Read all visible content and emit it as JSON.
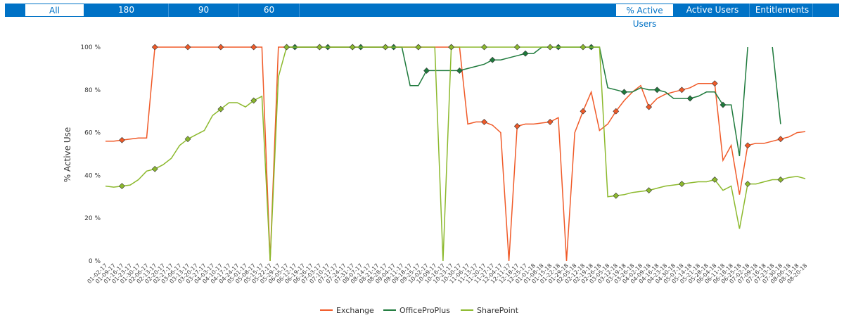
{
  "tabs_left": [
    "All",
    "180",
    "90",
    "60"
  ],
  "tabs_left_selected": 0,
  "tabs_right": [
    "% Active Users",
    "Active Users",
    "Entitlements"
  ],
  "tabs_right_selected": 0,
  "chart_data": {
    "type": "line",
    "ylabel": "% Active Use",
    "categories": [
      "01-02-17",
      "01-09-17",
      "01-16-17",
      "01-23-17",
      "01-30-17",
      "02-06-17",
      "02-13-17",
      "02-20-17",
      "02-27-17",
      "03-06-17",
      "03-13-17",
      "03-20-17",
      "03-27-17",
      "04-03-17",
      "04-10-17",
      "04-17-17",
      "04-24-17",
      "05-01-17",
      "05-08-17",
      "05-15-17",
      "05-22-17",
      "05-29-17",
      "06-05-17",
      "06-12-17",
      "06-19-17",
      "06-26-17",
      "07-03-17",
      "07-10-17",
      "07-17-17",
      "07-24-17",
      "07-31-17",
      "08-07-17",
      "08-14-17",
      "08-21-17",
      "08-28-17",
      "09-04-17",
      "09-11-17",
      "09-18-17",
      "09-25-17",
      "10-02-17",
      "10-09-17",
      "10-16-17",
      "10-23-17",
      "10-30-17",
      "11-06-17",
      "11-13-17",
      "11-20-17",
      "11-27-17",
      "12-04-17",
      "12-11-17",
      "12-18-17",
      "12-25-17",
      "01-01-18",
      "01-08-18",
      "01-15-18",
      "01-22-18",
      "01-29-18",
      "02-05-18",
      "02-12-18",
      "02-19-18",
      "02-26-18",
      "03-05-18",
      "03-12-18",
      "03-19-18",
      "03-26-18",
      "04-02-18",
      "04-09-18",
      "04-16-18",
      "04-23-18",
      "04-30-18",
      "05-07-18",
      "05-14-18",
      "05-21-18",
      "05-28-18",
      "06-04-18",
      "06-11-18",
      "06-18-18",
      "06-25-18",
      "07-02-18",
      "07-09-18",
      "07-16-18",
      "07-23-18",
      "07-30-18",
      "08-06-18",
      "08-13-18",
      "08-20-18"
    ],
    "series": [
      {
        "name": "Exchange",
        "color": "#f05a28",
        "values": [
          56,
          56,
          56.5,
          57,
          57.5,
          57.5,
          100,
          100,
          100,
          100,
          100,
          100,
          100,
          100,
          100,
          100,
          100,
          100,
          100,
          100,
          0,
          100,
          100,
          100,
          100,
          100,
          100,
          100,
          100,
          100,
          100,
          100,
          100,
          100,
          100,
          100,
          100,
          100,
          100,
          100,
          100,
          100,
          100,
          100,
          64,
          65,
          65,
          63.5,
          60,
          0,
          63,
          64,
          64,
          64.5,
          65,
          67,
          0,
          60,
          70,
          79,
          61,
          64,
          70,
          75,
          79,
          82,
          72,
          76,
          78,
          79,
          80,
          81,
          83,
          83,
          83,
          47,
          54,
          31,
          54,
          55,
          55,
          56,
          57,
          58,
          60,
          60.5
        ]
      },
      {
        "name": "OfficeProPlus",
        "color": "#1e7a3c",
        "values": [
          null,
          null,
          null,
          null,
          null,
          null,
          null,
          null,
          null,
          null,
          null,
          null,
          null,
          null,
          null,
          null,
          null,
          null,
          null,
          null,
          null,
          null,
          100,
          100,
          100,
          100,
          100,
          100,
          100,
          100,
          100,
          100,
          100,
          100,
          100,
          100,
          100,
          82,
          82,
          89,
          89,
          89,
          89,
          89,
          90,
          91,
          92,
          94,
          94,
          95,
          96,
          97,
          97,
          100,
          100,
          100,
          100,
          100,
          100,
          100,
          100,
          81,
          80,
          79,
          79,
          81,
          80,
          80,
          79,
          76,
          76,
          76,
          77,
          79,
          79,
          73,
          73,
          49,
          100,
          null,
          null,
          100,
          64,
          null,
          null,
          null
        ]
      },
      {
        "name": "SharePoint",
        "color": "#8cb92d",
        "values": [
          35,
          34.5,
          35,
          35.5,
          38,
          42,
          43,
          45,
          48,
          54,
          57,
          59,
          61,
          68,
          71,
          74,
          74,
          72,
          75,
          77,
          0,
          86,
          100,
          100,
          100,
          100,
          100,
          100,
          100,
          100,
          100,
          100,
          100,
          100,
          100,
          100,
          100,
          100,
          100,
          100,
          100,
          0,
          100,
          100,
          100,
          100,
          100,
          100,
          100,
          100,
          100,
          100,
          100,
          100,
          100,
          100,
          100,
          100,
          100,
          100,
          100,
          30,
          30.5,
          31,
          32,
          32.5,
          33,
          34,
          35,
          35.5,
          36,
          36.5,
          37,
          37,
          38,
          33,
          35,
          15,
          36,
          36,
          37,
          38,
          38,
          39,
          39.5,
          38.5
        ]
      }
    ],
    "ylim": [
      0,
      100
    ],
    "yticks": [
      {
        "value": 0,
        "label": "0 %"
      },
      {
        "value": 20,
        "label": "20 %"
      },
      {
        "value": 40,
        "label": "40 %"
      },
      {
        "value": 60,
        "label": "60 %"
      },
      {
        "value": 80,
        "label": "80 %"
      },
      {
        "value": 100,
        "label": "100 %"
      }
    ],
    "grid": false,
    "legend": "bottom"
  }
}
